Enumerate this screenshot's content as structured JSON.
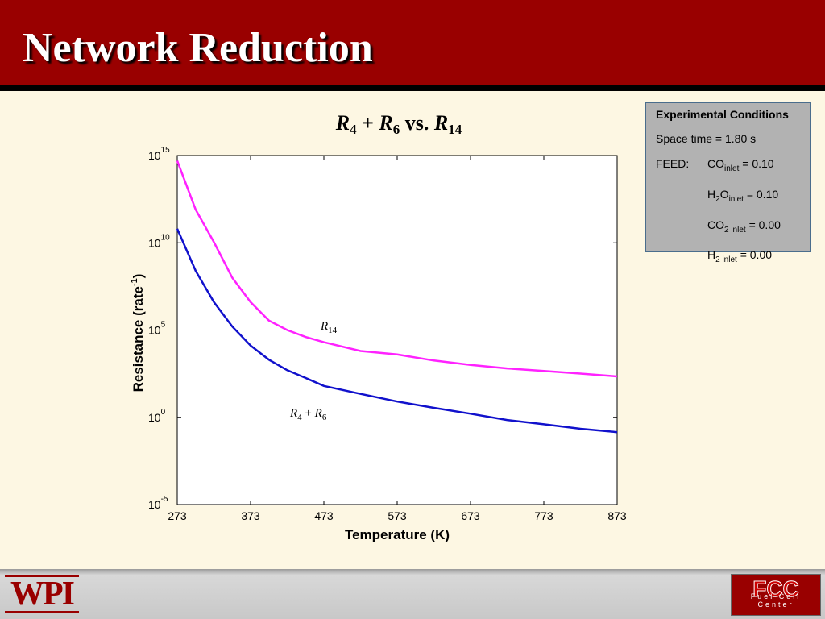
{
  "header": {
    "title": "Network Reduction"
  },
  "chart_data": {
    "type": "line",
    "title": [
      "R",
      "4",
      " + ",
      "R",
      "6",
      " vs. ",
      "R",
      "14"
    ],
    "xlabel": "Temperature (K)",
    "ylabel": [
      "Resistance (rate",
      "-1",
      ")"
    ],
    "xlim": [
      273,
      873
    ],
    "xticks": [
      273,
      373,
      473,
      573,
      673,
      773,
      873
    ],
    "ylim": [
      1e-05,
      1000000000000000.0
    ],
    "log_y": true,
    "yticks": [
      {
        "value": 1000000000000000.0,
        "label": [
          "10",
          "15"
        ]
      },
      {
        "value": 10000000000.0,
        "label": [
          "10",
          "10"
        ]
      },
      {
        "value": 100000.0,
        "label": [
          "10",
          "5"
        ]
      },
      {
        "value": 1,
        "label": [
          "10",
          "0"
        ]
      },
      {
        "value": 1e-05,
        "label": [
          "10",
          "-5"
        ]
      }
    ],
    "x": [
      273,
      298,
      323,
      348,
      373,
      398,
      423,
      448,
      473,
      523,
      573,
      623,
      673,
      723,
      773,
      823,
      873
    ],
    "series": [
      {
        "name": [
          "R",
          "14"
        ],
        "color": "#ff22ff",
        "values": [
          500000000000000.0,
          800000000000.0,
          11000000000.0,
          100000000.0,
          4000000.0,
          350000.0,
          100000.0,
          40000.0,
          20000.0,
          6300,
          4000,
          1800,
          1000,
          630,
          450,
          320,
          220
        ]
      },
      {
        "name": [
          "R",
          "4",
          " + ",
          "R",
          "6"
        ],
        "color": "#1111cc",
        "values": [
          63000000000.0,
          250000000.0,
          4000000.0,
          160000.0,
          13000,
          2000,
          500,
          180,
          63,
          22,
          8,
          3.5,
          1.6,
          0.7,
          0.4,
          0.22,
          0.14
        ]
      }
    ]
  },
  "conditions": {
    "heading": "Experimental Conditions",
    "space_time": "Space time = 1.80 s",
    "feed_label": "FEED:",
    "feed": [
      [
        "CO",
        "inlet",
        " = 0.10"
      ],
      [
        "H",
        "2",
        "O",
        "inlet",
        " = 0.10"
      ],
      [
        "CO",
        "2 inlet",
        " = 0.00"
      ],
      [
        "H",
        "2 inlet",
        " = 0.00"
      ]
    ]
  },
  "footer": {
    "left_logo": "WPI",
    "right_logo": "FCC",
    "right_logo_text": "Fuel Cell Center"
  }
}
